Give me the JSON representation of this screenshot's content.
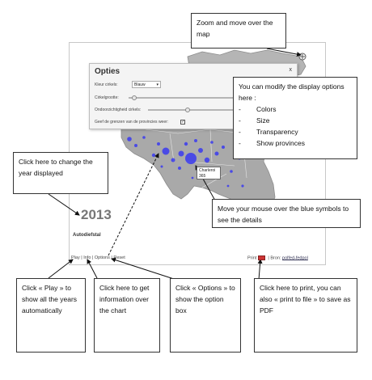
{
  "colors": {
    "map_fill": "#a9a9a9",
    "map_fill_light": "#dcdcdc",
    "bubble": "#3a3af0",
    "callout_border": "#333333"
  },
  "callouts": {
    "zoom": "Zoom and move over the map",
    "options_intro": "You can modify the display options here :",
    "options_items": [
      "Colors",
      "Size",
      "Transparency",
      "Show provinces"
    ],
    "options_dash": "-",
    "year": "Click here to change the year displayed",
    "mouse": "Move your mouse over the blue symbols to see the details",
    "play": "Click « Play » to show all the years automatically",
    "info": "Click here to get information over the chart",
    "options_btn": "Click « Options » to show the option box",
    "print": "Click here to print, you can also « print to file » to save as PDF"
  },
  "options_dialog": {
    "title": "Opties",
    "close": "x",
    "color_label": "Kleur cirkels:",
    "color_value": "Blauw",
    "size_label": "Cirkelgrootte:",
    "opacity_label": "Ondoorzichtigheid cirkels:",
    "provinces_label": "Geef de grenzen van de provincies weer:",
    "provinces_checked": true
  },
  "map": {
    "year": "2013",
    "subtitle": "Autodiefstal",
    "tooltip_name": "Charleroi",
    "tooltip_value": "365"
  },
  "footer": {
    "play": "Play",
    "info": "Info",
    "options": "Options",
    "reset": "Reset",
    "sep": "|",
    "print": "Print",
    "source_label": "Bron:",
    "source_link": "polfed-fedpol"
  }
}
